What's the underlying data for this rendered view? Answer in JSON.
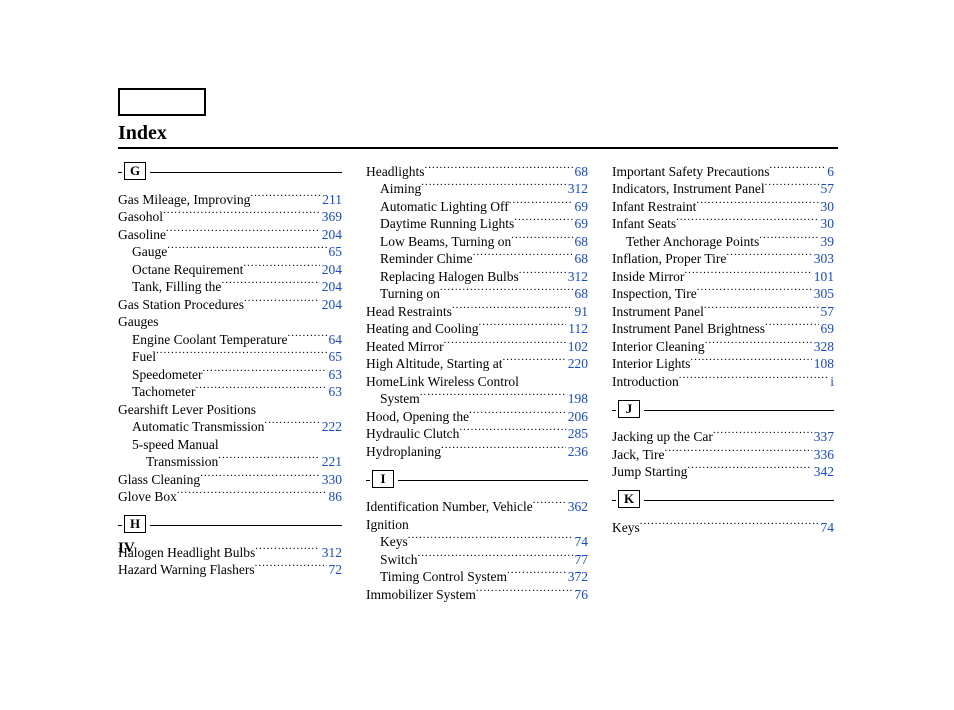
{
  "page": {
    "title": "Index",
    "page_label": "IV",
    "link_color": "#1549d6",
    "text_color": "#000000",
    "background_color": "#ffffff",
    "font_family": "Times New Roman",
    "columns_count": 3
  },
  "sections": {
    "G": {
      "letter": "G",
      "entries": [
        {
          "label": "Gas Mileage, Improving",
          "page": "211",
          "indent": 0
        },
        {
          "label": "Gasohol",
          "page": "369",
          "indent": 0
        },
        {
          "label": "Gasoline",
          "page": "204",
          "indent": 0
        },
        {
          "label": "Gauge",
          "page": "65",
          "indent": 1
        },
        {
          "label": "Octane Requirement",
          "page": "204",
          "indent": 1
        },
        {
          "label": "Tank, Filling the",
          "page": "204",
          "indent": 1
        },
        {
          "label": "Gas Station Procedures",
          "page": "204",
          "indent": 0
        },
        {
          "label": "Gauges",
          "page": "",
          "indent": 0,
          "noPage": true
        },
        {
          "label": "Engine Coolant Temperature",
          "page": "64",
          "indent": 1,
          "dotStyle": "sparse"
        },
        {
          "label": "Fuel",
          "page": "65",
          "indent": 1
        },
        {
          "label": "Speedometer",
          "page": "63",
          "indent": 1
        },
        {
          "label": "Tachometer",
          "page": "63",
          "indent": 1
        },
        {
          "label": "Gearshift Lever Positions",
          "page": "",
          "indent": 0,
          "noPage": true
        },
        {
          "label": "Automatic Transmission",
          "page": "222",
          "indent": 1
        },
        {
          "label": "5-speed Manual",
          "page": "",
          "indent": 1,
          "noPage": true
        },
        {
          "label": "Transmission",
          "page": "221",
          "indent": 2
        },
        {
          "label": "Glass Cleaning",
          "page": "330",
          "indent": 0
        },
        {
          "label": "Glove Box",
          "page": "86",
          "indent": 0
        }
      ]
    },
    "H": {
      "letter": "H",
      "entries_col1": [
        {
          "label": "Halogen Headlight Bulbs",
          "page": "312",
          "indent": 0
        },
        {
          "label": "Hazard Warning Flashers",
          "page": "72",
          "indent": 0
        }
      ],
      "entries_col2": [
        {
          "label": "Headlights",
          "page": "68",
          "indent": 0
        },
        {
          "label": "Aiming",
          "page": "312",
          "indent": 1
        },
        {
          "label": "Automatic Lighting Off",
          "page": "69",
          "indent": 1
        },
        {
          "label": "Daytime Running Lights",
          "page": "69",
          "indent": 1
        },
        {
          "label": "Low Beams, Turning on",
          "page": "68",
          "indent": 1
        },
        {
          "label": "Reminder Chime",
          "page": "68",
          "indent": 1
        },
        {
          "label": "Replacing Halogen Bulbs",
          "page": "312",
          "indent": 1
        },
        {
          "label": "Turning on",
          "page": "68",
          "indent": 1
        },
        {
          "label": "Head Restraints",
          "page": "91",
          "indent": 0
        },
        {
          "label": "Heating and Cooling",
          "page": "112",
          "indent": 0
        },
        {
          "label": "Heated Mirror",
          "page": "102",
          "indent": 0
        },
        {
          "label": "High Altitude, Starting at",
          "page": "220",
          "indent": 0
        },
        {
          "label": "HomeLink Wireless Control",
          "page": "",
          "indent": 0,
          "noPage": true
        },
        {
          "label": "System",
          "page": "198",
          "indent": 1
        },
        {
          "label": "Hood, Opening the",
          "page": "206",
          "indent": 0
        },
        {
          "label": "Hydraulic Clutch",
          "page": "285",
          "indent": 0
        },
        {
          "label": "Hydroplaning",
          "page": "236",
          "indent": 0
        }
      ]
    },
    "I": {
      "letter": "I",
      "entries_col2": [
        {
          "label": "Identification Number, Vehicle",
          "page": "362",
          "indent": 0,
          "dotStyle": "sparse"
        },
        {
          "label": "Ignition",
          "page": "",
          "indent": 0,
          "noPage": true
        },
        {
          "label": "Keys",
          "page": "74",
          "indent": 1
        },
        {
          "label": "Switch",
          "page": "77",
          "indent": 1
        },
        {
          "label": "Timing Control System",
          "page": "372",
          "indent": 1
        },
        {
          "label": "Immobilizer System",
          "page": "76",
          "indent": 0
        }
      ],
      "entries_col3": [
        {
          "label": "Important Safety Precautions",
          "page": "6",
          "indent": 0
        },
        {
          "label": "Indicators, Instrument Panel",
          "page": "57",
          "indent": 0
        },
        {
          "label": "Infant Restraint",
          "page": "30",
          "indent": 0
        },
        {
          "label": "Infant Seats",
          "page": "30",
          "indent": 0
        },
        {
          "label": "Tether Anchorage Points",
          "page": "39",
          "indent": 1
        },
        {
          "label": "Inflation, Proper Tire",
          "page": "303",
          "indent": 0
        },
        {
          "label": "Inside Mirror",
          "page": "101",
          "indent": 0
        },
        {
          "label": "Inspection, Tire",
          "page": "305",
          "indent": 0
        },
        {
          "label": "Instrument Panel",
          "page": "57",
          "indent": 0
        },
        {
          "label": "Instrument Panel Brightness",
          "page": "69",
          "indent": 0
        },
        {
          "label": "Interior Cleaning",
          "page": "328",
          "indent": 0
        },
        {
          "label": "Interior Lights",
          "page": "108",
          "indent": 0
        },
        {
          "label": "Introduction",
          "page": "i",
          "indent": 0
        }
      ]
    },
    "J": {
      "letter": "J",
      "entries": [
        {
          "label": "Jacking up the Car",
          "page": "337",
          "indent": 0
        },
        {
          "label": "Jack, Tire",
          "page": "336",
          "indent": 0
        },
        {
          "label": "Jump Starting",
          "page": "342",
          "indent": 0
        }
      ]
    },
    "K": {
      "letter": "K",
      "entries": [
        {
          "label": "Keys",
          "page": "74",
          "indent": 0
        }
      ]
    }
  }
}
